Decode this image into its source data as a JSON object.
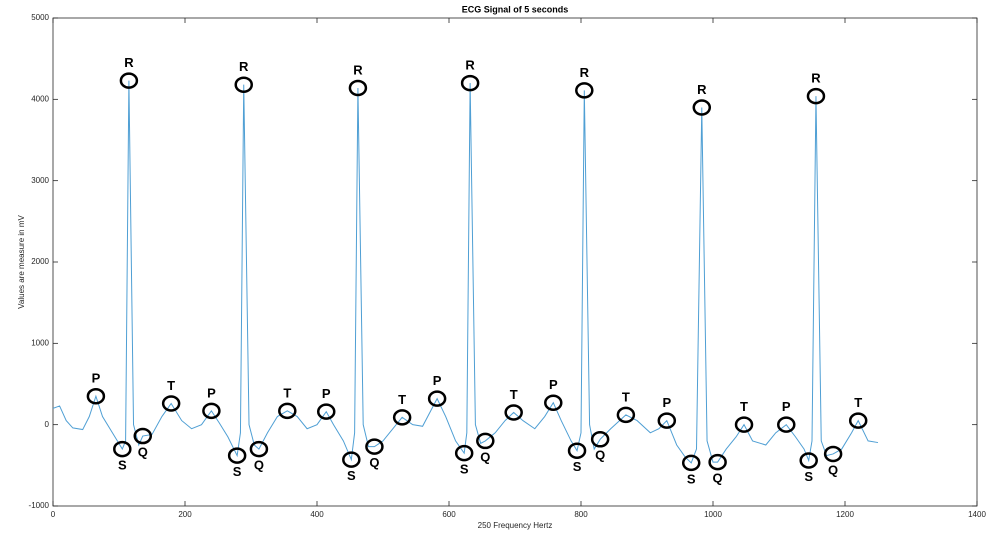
{
  "chart_data": {
    "type": "line",
    "title": "ECG Signal of 5 seconds",
    "x_label": "250 Frequency Hertz",
    "y_label": "Values are measure in mV",
    "xlim": [
      0,
      1400
    ],
    "xticks": [
      0,
      200,
      400,
      600,
      800,
      1000,
      1200,
      1400
    ],
    "ylim": [
      -1000,
      5000
    ],
    "yticks": [
      -1000,
      0,
      1000,
      2000,
      3000,
      4000,
      5000
    ],
    "color": "#4f9fd4",
    "x": [
      0,
      10,
      20,
      30,
      45,
      55,
      65,
      75,
      90,
      105,
      110,
      115,
      122,
      130,
      136,
      150,
      165,
      179,
      195,
      210,
      225,
      240,
      252,
      265,
      279,
      284,
      289,
      297,
      305,
      312,
      325,
      340,
      355,
      370,
      385,
      400,
      414,
      425,
      440,
      452,
      457,
      462,
      470,
      478,
      487,
      500,
      515,
      529,
      545,
      560,
      582,
      595,
      610,
      623,
      627,
      632,
      640,
      648,
      655,
      670,
      685,
      698,
      712,
      730,
      745,
      758,
      770,
      785,
      794,
      800,
      805,
      813,
      820,
      829,
      845,
      868,
      885,
      905,
      918,
      930,
      945,
      958,
      967,
      975,
      983,
      991,
      1000,
      1007,
      1020,
      1035,
      1047,
      1060,
      1080,
      1095,
      1111,
      1125,
      1138,
      1145,
      1150,
      1156,
      1164,
      1172,
      1182,
      1195,
      1210,
      1220,
      1235,
      1250
    ],
    "values": [
      200,
      230,
      50,
      -40,
      -60,
      100,
      350,
      100,
      -100,
      -300,
      -200,
      4230,
      0,
      -250,
      -140,
      -120,
      100,
      260,
      50,
      -50,
      0,
      170,
      20,
      -150,
      -380,
      -100,
      4180,
      0,
      -250,
      -300,
      -100,
      100,
      170,
      100,
      -50,
      0,
      160,
      0,
      -200,
      -430,
      -100,
      4140,
      0,
      -270,
      -270,
      -200,
      -50,
      90,
      0,
      -20,
      320,
      100,
      -200,
      -350,
      -100,
      4200,
      0,
      -230,
      -200,
      -100,
      50,
      150,
      50,
      -50,
      100,
      270,
      50,
      -200,
      -320,
      -100,
      4110,
      0,
      -300,
      -180,
      -50,
      120,
      50,
      -100,
      -50,
      50,
      -250,
      -400,
      -470,
      -300,
      3900,
      -200,
      -460,
      -460,
      -300,
      -150,
      0,
      -200,
      -250,
      -100,
      0,
      -150,
      -300,
      -440,
      -200,
      4040,
      -200,
      -380,
      -360,
      -300,
      -100,
      50,
      -200,
      -220
    ],
    "annotations": [
      {
        "label": "R",
        "x": 115,
        "y": 4230
      },
      {
        "label": "R",
        "x": 289,
        "y": 4180
      },
      {
        "label": "R",
        "x": 462,
        "y": 4140
      },
      {
        "label": "R",
        "x": 632,
        "y": 4200
      },
      {
        "label": "R",
        "x": 805,
        "y": 4110
      },
      {
        "label": "R",
        "x": 983,
        "y": 3900
      },
      {
        "label": "R",
        "x": 1156,
        "y": 4040
      },
      {
        "label": "P",
        "x": 65,
        "y": 350
      },
      {
        "label": "P",
        "x": 240,
        "y": 170
      },
      {
        "label": "P",
        "x": 414,
        "y": 160
      },
      {
        "label": "P",
        "x": 582,
        "y": 320
      },
      {
        "label": "P",
        "x": 758,
        "y": 270
      },
      {
        "label": "P",
        "x": 930,
        "y": 50
      },
      {
        "label": "P",
        "x": 1111,
        "y": 0
      },
      {
        "label": "T",
        "x": 179,
        "y": 260
      },
      {
        "label": "T",
        "x": 355,
        "y": 170
      },
      {
        "label": "T",
        "x": 529,
        "y": 90
      },
      {
        "label": "T",
        "x": 698,
        "y": 150
      },
      {
        "label": "T",
        "x": 868,
        "y": 120
      },
      {
        "label": "T",
        "x": 1047,
        "y": 0
      },
      {
        "label": "T",
        "x": 1220,
        "y": 50
      },
      {
        "label": "S",
        "x": 105,
        "y": -300
      },
      {
        "label": "S",
        "x": 279,
        "y": -380
      },
      {
        "label": "S",
        "x": 452,
        "y": -430
      },
      {
        "label": "S",
        "x": 623,
        "y": -350
      },
      {
        "label": "S",
        "x": 794,
        "y": -320
      },
      {
        "label": "S",
        "x": 967,
        "y": -470
      },
      {
        "label": "S",
        "x": 1145,
        "y": -440
      },
      {
        "label": "Q",
        "x": 136,
        "y": -140
      },
      {
        "label": "Q",
        "x": 312,
        "y": -300
      },
      {
        "label": "Q",
        "x": 487,
        "y": -270
      },
      {
        "label": "Q",
        "x": 655,
        "y": -200
      },
      {
        "label": "Q",
        "x": 829,
        "y": -180
      },
      {
        "label": "Q",
        "x": 1007,
        "y": -460
      },
      {
        "label": "Q",
        "x": 1182,
        "y": -360
      }
    ]
  }
}
